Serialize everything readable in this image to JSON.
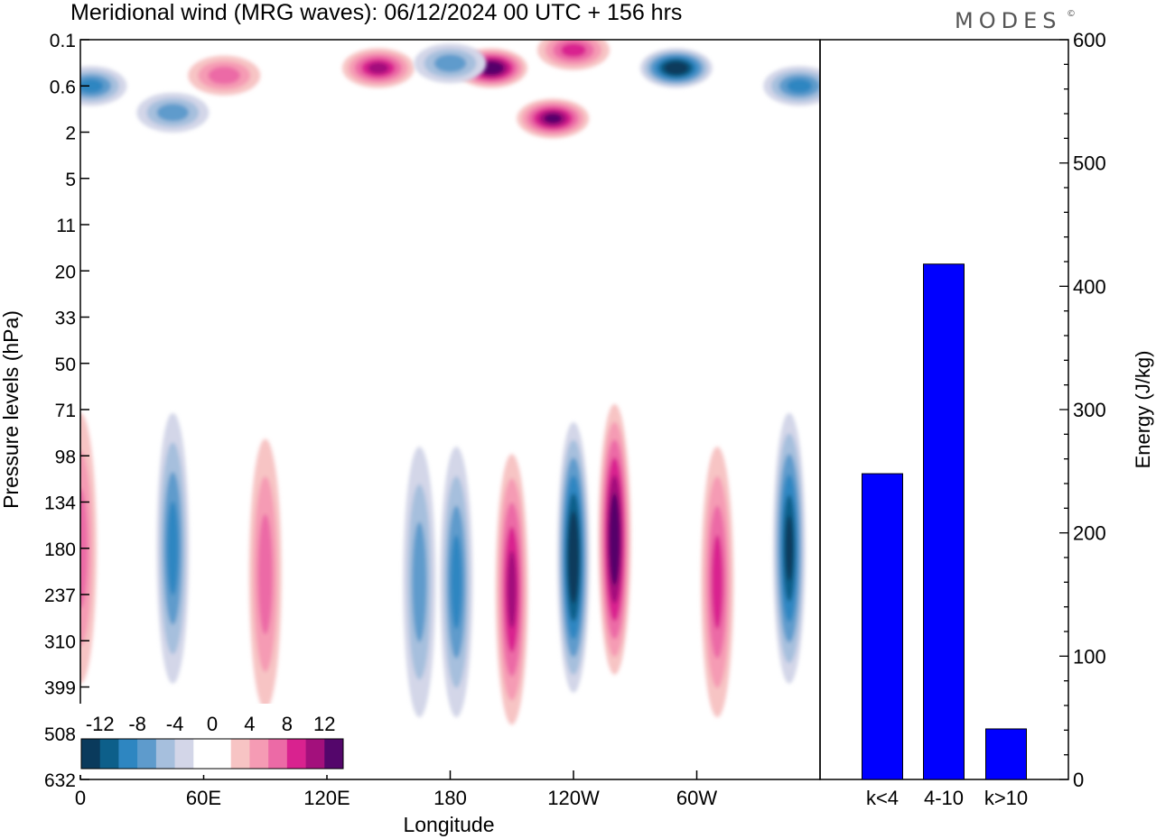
{
  "title": "Meridional wind (MRG waves):  06/12/2024  00 UTC  + 156 hrs",
  "brand": "MODES",
  "brand_mark": "©",
  "chart_data": [
    {
      "type": "heatmap",
      "variable": "Meridional wind (MRG waves)",
      "xlabel": "Longitude",
      "ylabel": "Pressure levels (hPa)",
      "x_ticks": [
        "0",
        "60E",
        "120E",
        "180",
        "120W",
        "60W"
      ],
      "y_ticks": [
        "0.1",
        "0.6",
        "2",
        "5",
        "11",
        "20",
        "33",
        "50",
        "71",
        "98",
        "134",
        "180",
        "237",
        "310",
        "399",
        "508",
        "632"
      ],
      "colorbar": {
        "labels": [
          "-12",
          "-8",
          "-4",
          "0",
          "4",
          "8",
          "12"
        ],
        "colors": [
          "#0a3a5c",
          "#0d5f8a",
          "#2e86c1",
          "#5e9bcc",
          "#a6bfdd",
          "#d3d6e8",
          "#ffffff",
          "#ffffff",
          "#f7c4c4",
          "#f59bb4",
          "#ec6aa6",
          "#d9228f",
          "#a3107c",
          "#54066b"
        ]
      },
      "field_features": [
        {
          "lon": 200,
          "lev": 0.3,
          "v": 14
        },
        {
          "lon": 145,
          "lev": 0.3,
          "v": 10
        },
        {
          "lon": 70,
          "lev": 0.4,
          "v": 7
        },
        {
          "lon": 230,
          "lev": 1.4,
          "v": 12
        },
        {
          "lon": 240,
          "lev": 0.15,
          "v": 8
        },
        {
          "lon": 290,
          "lev": 0.3,
          "v": -14
        },
        {
          "lon": 5,
          "lev": 0.6,
          "v": -8
        },
        {
          "lon": 350,
          "lev": 0.6,
          "v": -9
        },
        {
          "lon": 45,
          "lev": 1.2,
          "v": -6
        },
        {
          "lon": 180,
          "lev": 0.25,
          "v": -7
        },
        {
          "lon": 45,
          "lev": 180,
          "v": -9
        },
        {
          "lon": 0,
          "lev": 180,
          "v": 7
        },
        {
          "lon": 90,
          "lev": 210,
          "v": 6
        },
        {
          "lon": 210,
          "lev": 230,
          "v": 11
        },
        {
          "lon": 240,
          "lev": 190,
          "v": -15
        },
        {
          "lon": 260,
          "lev": 170,
          "v": 14
        },
        {
          "lon": 310,
          "lev": 220,
          "v": 9
        },
        {
          "lon": 345,
          "lev": 180,
          "v": -13
        },
        {
          "lon": 183,
          "lev": 220,
          "v": -8
        },
        {
          "lon": 165,
          "lev": 220,
          "v": -6
        }
      ]
    },
    {
      "type": "bar",
      "categories": [
        "k<4",
        "4-10",
        "k>10"
      ],
      "values": [
        248,
        418,
        41
      ],
      "ylabel": "Energy (J/kg)",
      "ylim": [
        0,
        600
      ],
      "y_ticks": [
        "0",
        "100",
        "200",
        "300",
        "400",
        "500",
        "600"
      ],
      "bar_color": "#0000ff"
    }
  ]
}
